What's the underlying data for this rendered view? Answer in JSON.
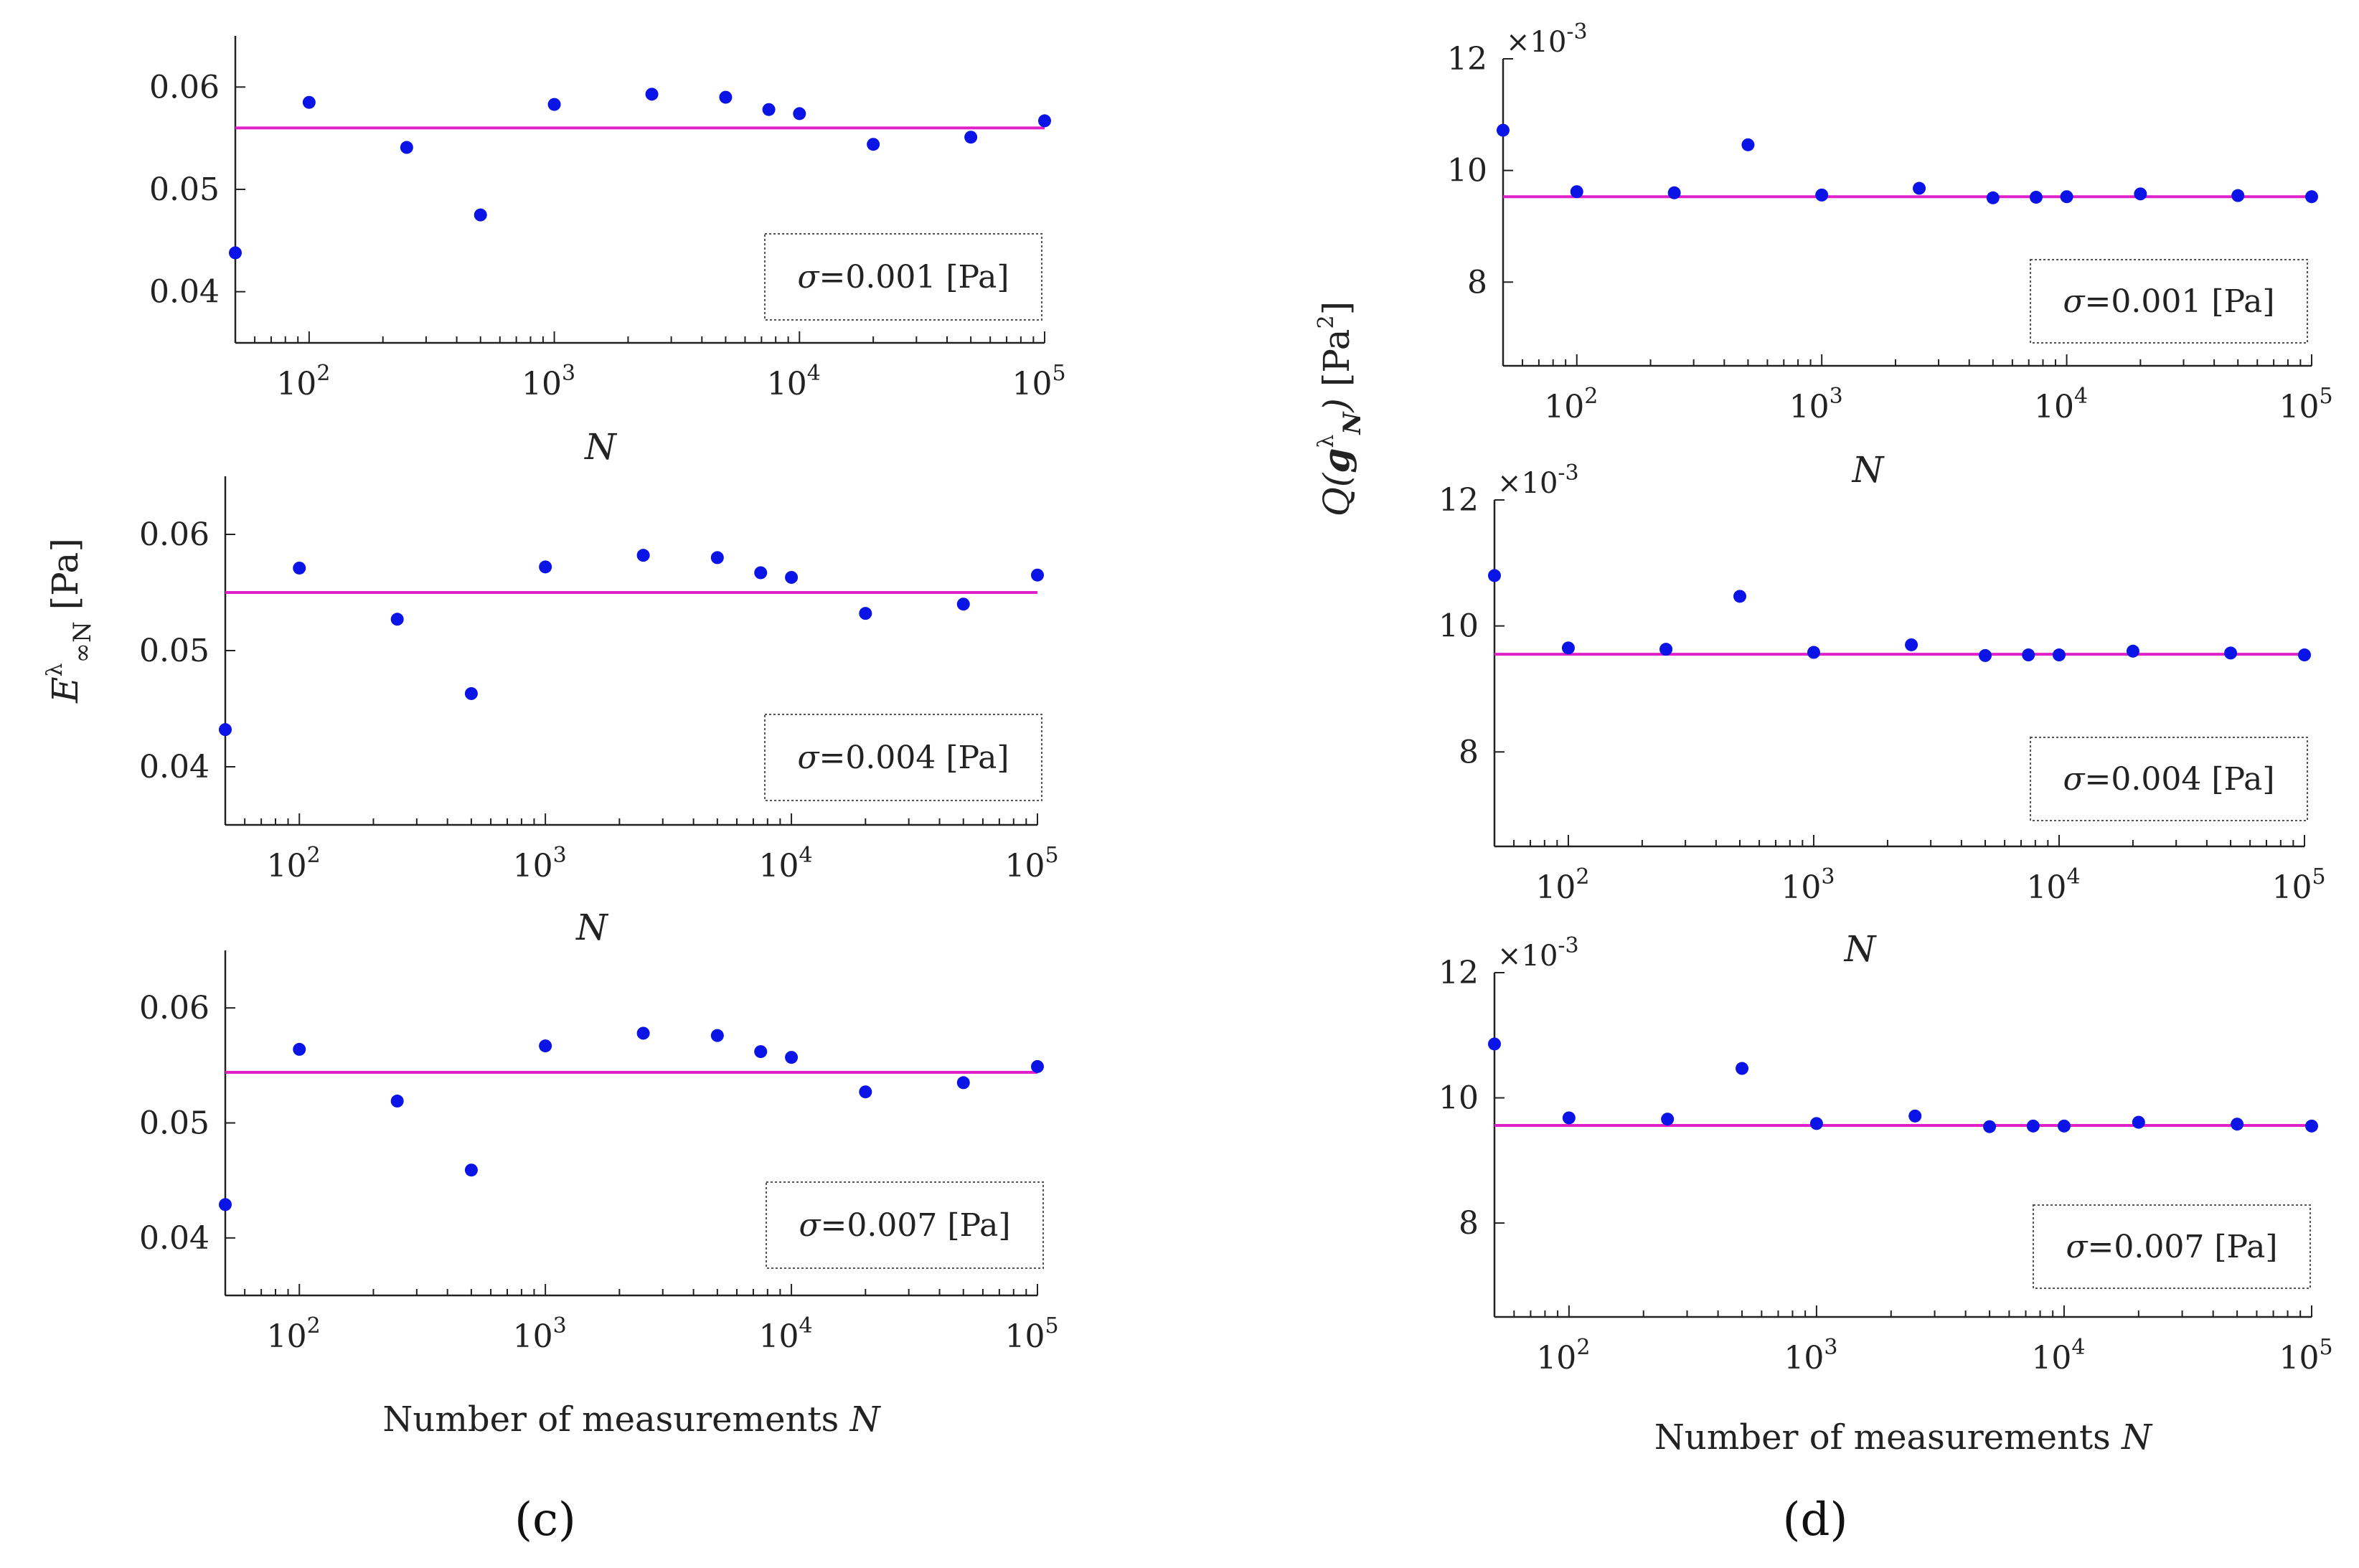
{
  "panels": {
    "left": "(c)",
    "right": "(d)"
  },
  "shared": {
    "x_tick_labels": [
      {
        "base": "10",
        "exp": "2"
      },
      {
        "base": "10",
        "exp": "3"
      },
      {
        "base": "10",
        "exp": "4"
      },
      {
        "base": "10",
        "exp": "5"
      }
    ],
    "x_label_N": "N",
    "x_label_bottom": "Number of measurements N",
    "left_y_label": "E^λ_∞N [Pa]",
    "right_y_label": "Q(g^λ_N) [Pa^2]",
    "right_multiplier": "×10^-3"
  },
  "chart_data": [
    {
      "type": "scatter",
      "panel": "c",
      "id": "c1",
      "legend": "σ=0.001 [Pa]",
      "xscale": "log",
      "xlim": [
        50,
        100000
      ],
      "ylim": [
        0.035,
        0.065
      ],
      "yticks": [
        0.04,
        0.05,
        0.06
      ],
      "ytick_labels": [
        "0.04",
        "0.05",
        "0.06"
      ],
      "x": [
        50,
        100,
        250,
        500,
        1000,
        2500,
        5000,
        7500,
        10000,
        20000,
        50000,
        100000
      ],
      "y": [
        0.0438,
        0.0585,
        0.0541,
        0.0475,
        0.0583,
        0.0593,
        0.059,
        0.0578,
        0.0574,
        0.0544,
        0.0551,
        0.0567
      ],
      "reference_line": 0.056,
      "xlabel": "N"
    },
    {
      "type": "scatter",
      "panel": "c",
      "id": "c2",
      "legend": "σ=0.004 [Pa]",
      "xscale": "log",
      "xlim": [
        50,
        100000
      ],
      "ylim": [
        0.035,
        0.065
      ],
      "yticks": [
        0.04,
        0.05,
        0.06
      ],
      "ytick_labels": [
        "0.04",
        "0.05",
        "0.06"
      ],
      "x": [
        50,
        100,
        250,
        500,
        1000,
        2500,
        5000,
        7500,
        10000,
        20000,
        50000,
        100000
      ],
      "y": [
        0.0432,
        0.0571,
        0.0527,
        0.0463,
        0.0572,
        0.0582,
        0.058,
        0.0567,
        0.0563,
        0.0532,
        0.054,
        0.0565
      ],
      "reference_line": 0.055,
      "xlabel": "N"
    },
    {
      "type": "scatter",
      "panel": "c",
      "id": "c3",
      "legend": "σ=0.007 [Pa]",
      "xscale": "log",
      "xlim": [
        50,
        100000
      ],
      "ylim": [
        0.035,
        0.065
      ],
      "yticks": [
        0.04,
        0.05,
        0.06
      ],
      "ytick_labels": [
        "0.04",
        "0.05",
        "0.06"
      ],
      "x": [
        50,
        100,
        250,
        500,
        1000,
        2500,
        5000,
        7500,
        10000,
        20000,
        50000,
        100000
      ],
      "y": [
        0.0429,
        0.0564,
        0.0519,
        0.0459,
        0.0567,
        0.0578,
        0.0576,
        0.0562,
        0.0557,
        0.0527,
        0.0535,
        0.0549
      ],
      "reference_line": 0.0544,
      "xlabel": "Number of measurements N"
    },
    {
      "type": "scatter",
      "panel": "d",
      "id": "d1",
      "legend": "σ=0.001 [Pa]",
      "xscale": "log",
      "xlim": [
        50,
        100000
      ],
      "ylim": [
        6.5,
        12
      ],
      "scale_note": "×10^-3",
      "yticks": [
        8,
        10,
        12
      ],
      "ytick_labels": [
        "8",
        "10",
        "12"
      ],
      "x": [
        50,
        100,
        250,
        500,
        1000,
        2500,
        5000,
        7500,
        10000,
        20000,
        50000,
        100000
      ],
      "y": [
        10.72,
        9.62,
        9.6,
        10.46,
        9.56,
        9.68,
        9.51,
        9.52,
        9.53,
        9.58,
        9.55,
        9.53
      ],
      "reference_line": 9.53,
      "xlabel": "N"
    },
    {
      "type": "scatter",
      "panel": "d",
      "id": "d2",
      "legend": "σ=0.004 [Pa]",
      "xscale": "log",
      "xlim": [
        50,
        100000
      ],
      "ylim": [
        6.5,
        12
      ],
      "scale_note": "×10^-3",
      "yticks": [
        8,
        10,
        12
      ],
      "ytick_labels": [
        "8",
        "10",
        "12"
      ],
      "x": [
        50,
        100,
        250,
        500,
        1000,
        2500,
        5000,
        7500,
        10000,
        20000,
        50000,
        100000
      ],
      "y": [
        10.8,
        9.65,
        9.63,
        10.47,
        9.58,
        9.7,
        9.53,
        9.54,
        9.54,
        9.6,
        9.57,
        9.54
      ],
      "reference_line": 9.55,
      "xlabel": "N"
    },
    {
      "type": "scatter",
      "panel": "d",
      "id": "d3",
      "legend": "σ=0.007 [Pa]",
      "xscale": "log",
      "xlim": [
        50,
        100000
      ],
      "ylim": [
        6.5,
        12
      ],
      "scale_note": "×10^-3",
      "yticks": [
        8,
        10,
        12
      ],
      "ytick_labels": [
        "8",
        "10",
        "12"
      ],
      "x": [
        50,
        100,
        250,
        500,
        1000,
        2500,
        5000,
        7500,
        10000,
        20000,
        50000,
        100000
      ],
      "y": [
        10.86,
        9.68,
        9.66,
        10.47,
        9.59,
        9.71,
        9.54,
        9.55,
        9.55,
        9.61,
        9.58,
        9.55
      ],
      "reference_line": 9.56,
      "xlabel": "Number of measurements N"
    }
  ],
  "colors": {
    "points": "#0a14e6",
    "reference_line": "#e020c8",
    "axis": "#222222"
  }
}
